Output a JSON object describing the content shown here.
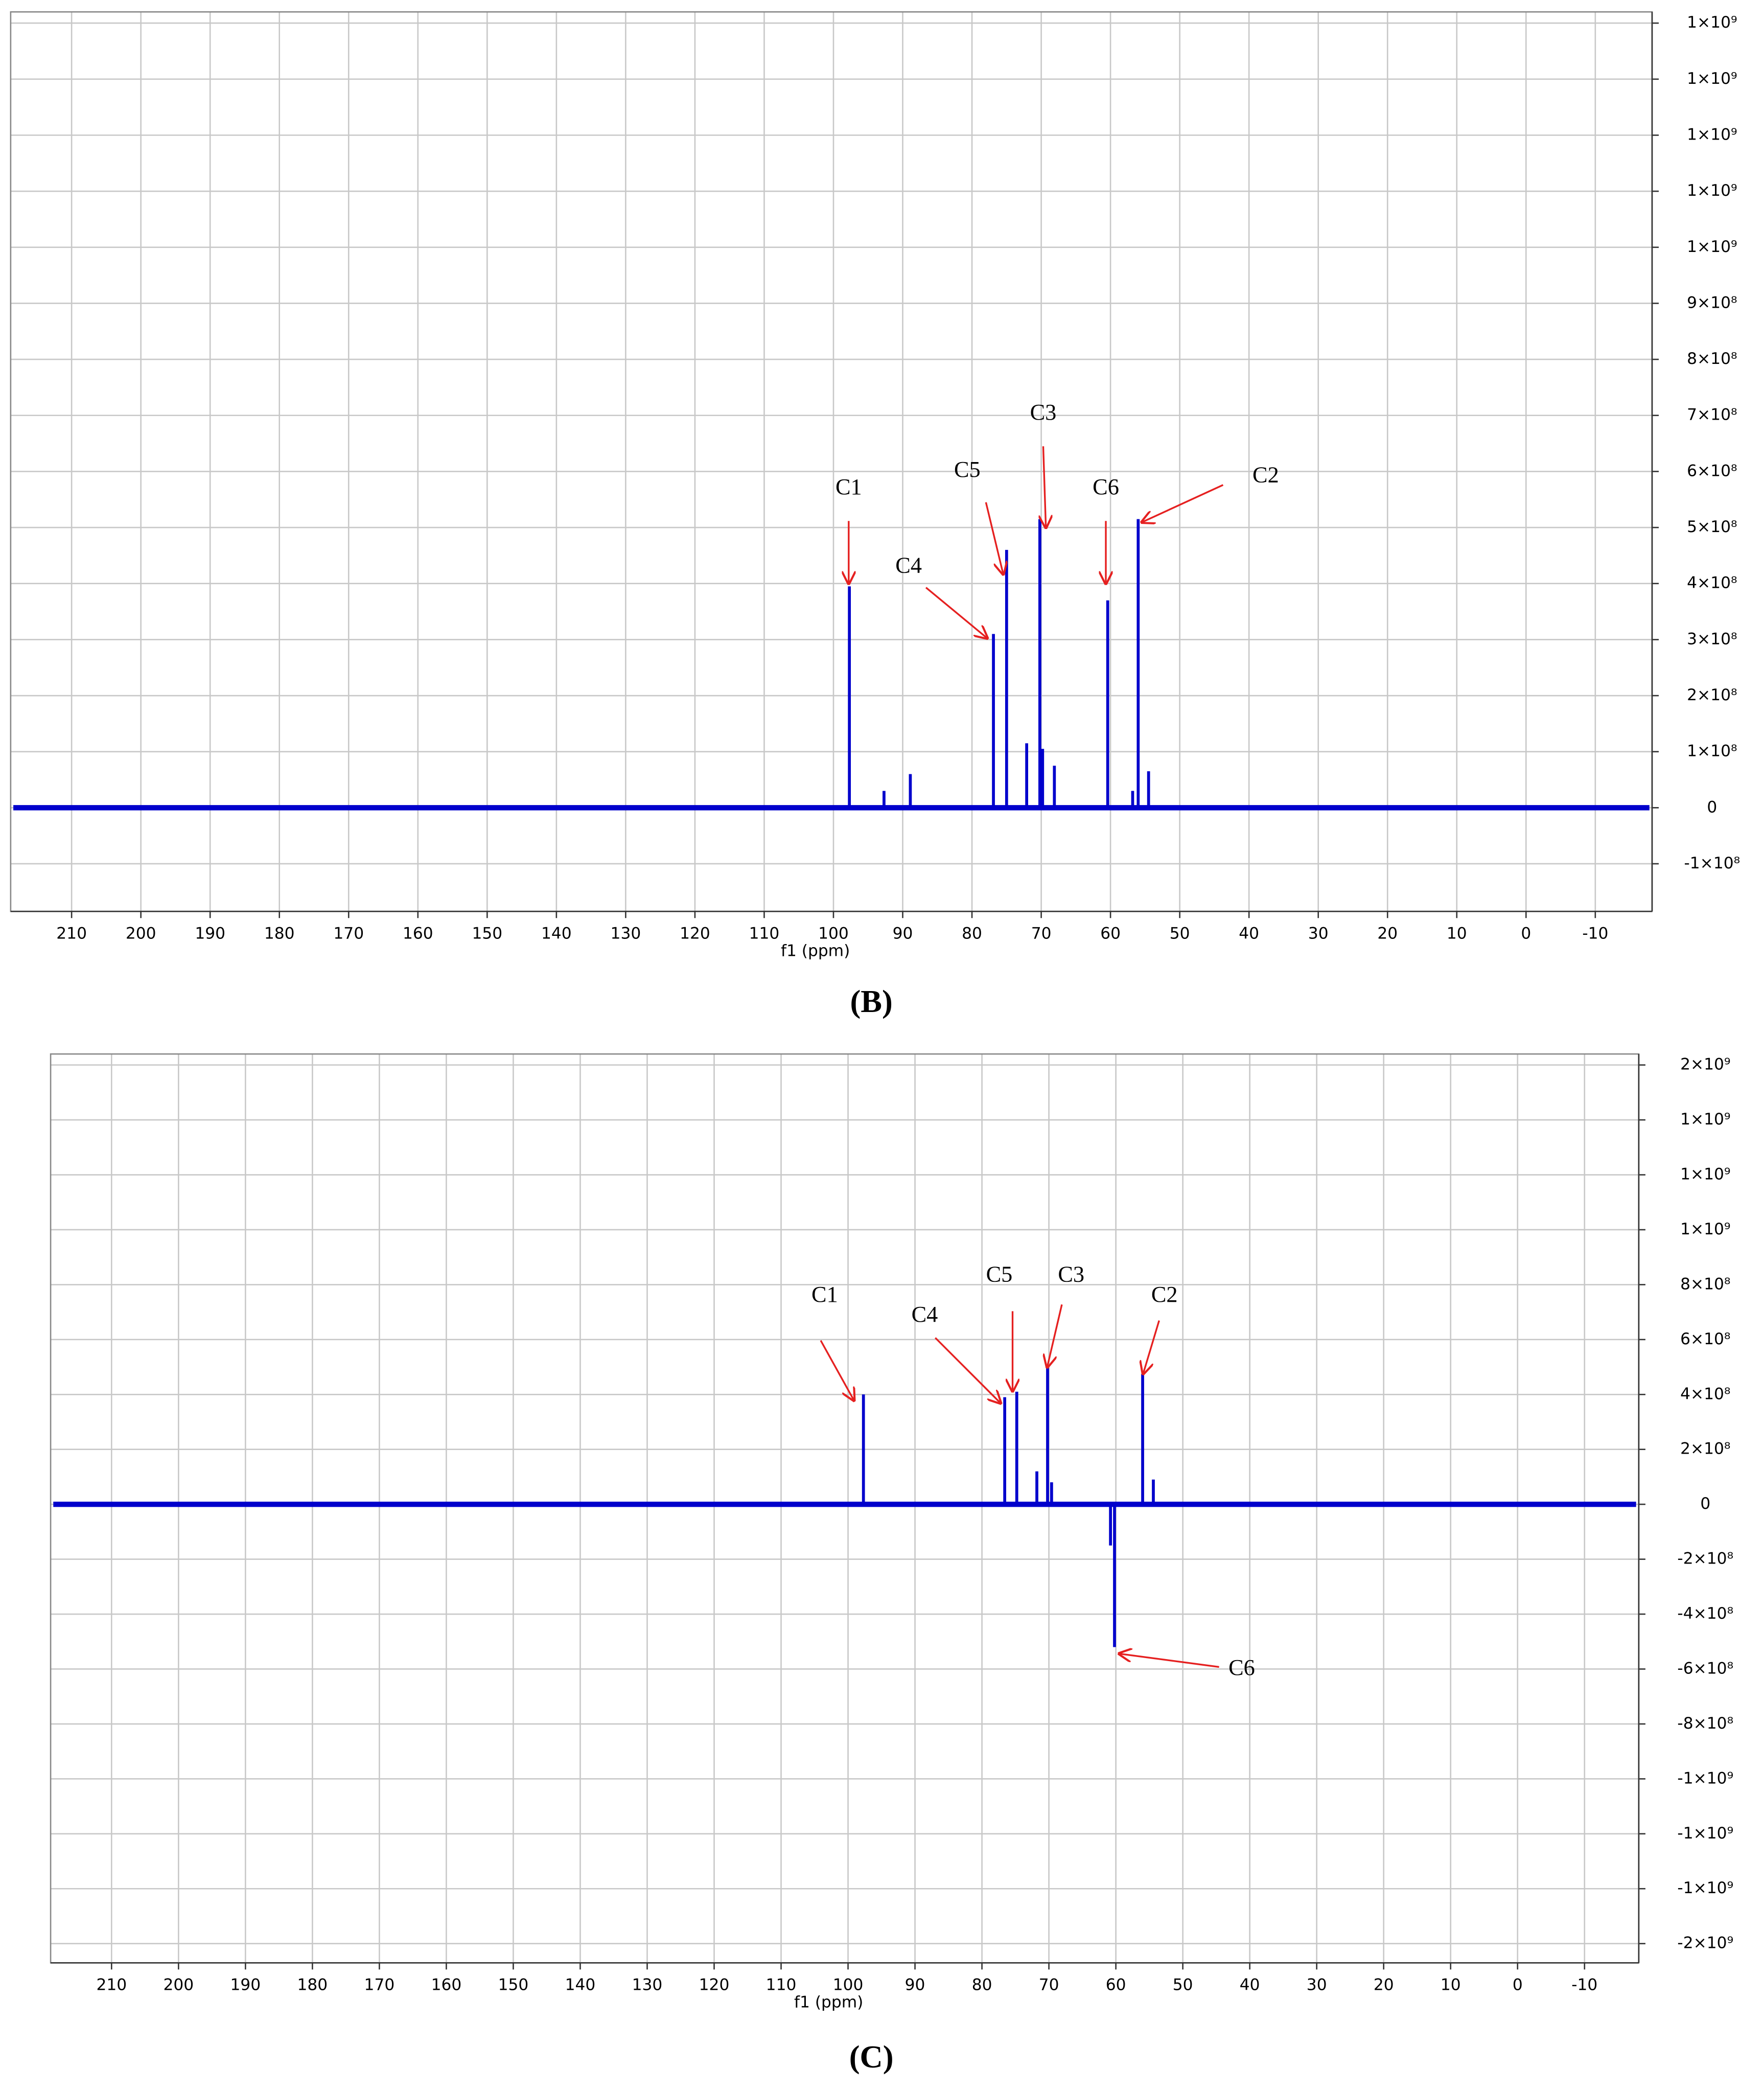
{
  "chart_data": [
    {
      "type": "stem",
      "caption": "(B)",
      "xlabel": "f1 (ppm)",
      "xlim": [
        218.8,
        -18.2
      ],
      "xticks": [
        210,
        200,
        190,
        180,
        170,
        160,
        150,
        140,
        130,
        120,
        110,
        100,
        90,
        80,
        70,
        60,
        50,
        40,
        30,
        20,
        10,
        0,
        -10
      ],
      "ylim": [
        -185000000,
        1420000000
      ],
      "yticks": [
        {
          "value": -100000000,
          "label": "-1×10⁸"
        },
        0,
        {
          "value": 100000000,
          "label": "1×10⁸"
        },
        {
          "value": 200000000,
          "label": "2×10⁸"
        },
        {
          "value": 300000000,
          "label": "3×10⁸"
        },
        {
          "value": 400000000,
          "label": "4×10⁸"
        },
        {
          "value": 500000000,
          "label": "5×10⁸"
        },
        {
          "value": 600000000,
          "label": "6×10⁸"
        },
        {
          "value": 700000000,
          "label": "7×10⁸"
        },
        {
          "value": 800000000,
          "label": "8×10⁸"
        },
        {
          "value": 900000000,
          "label": "9×10⁸"
        },
        {
          "value": 1000000000,
          "label": "1×10⁹"
        },
        {
          "value": 1100000000,
          "label": "1×10⁹"
        },
        {
          "value": 1200000000,
          "label": "1×10⁹"
        },
        {
          "value": 1300000000,
          "label": "1×10⁹"
        },
        {
          "value": 1400000000,
          "label": "1×10⁹"
        }
      ],
      "grid": true,
      "series": [
        {
          "color": "#0000cc",
          "x": [
            97.7,
            92.7,
            88.9,
            76.9,
            75.0,
            72.1,
            70.2,
            69.8,
            68.1,
            60.4,
            56.8,
            56.0,
            54.5
          ],
          "values": [
            395000000,
            30000000,
            60000000,
            310000000,
            460000000,
            115000000,
            515000000,
            105000000,
            75000000,
            370000000,
            30000000,
            515000000,
            65000000
          ],
          "labels": [
            "C1",
            null,
            null,
            "C4",
            "C5",
            null,
            "C3",
            null,
            null,
            "C6",
            null,
            "C2",
            null
          ]
        }
      ]
    },
    {
      "type": "stem",
      "caption": "(C)",
      "xlabel": "f1 (ppm)",
      "xlim": [
        219.1,
        -18.1
      ],
      "xticks": [
        210,
        200,
        190,
        180,
        170,
        160,
        150,
        140,
        130,
        120,
        110,
        100,
        90,
        80,
        70,
        60,
        50,
        40,
        30,
        20,
        10,
        0,
        -10
      ],
      "ylim": [
        -1670000000,
        1640000000
      ],
      "yticks": [
        {
          "value": -1600000000,
          "label": "-2×10⁹"
        },
        {
          "value": -1400000000,
          "label": "-1×10⁹"
        },
        {
          "value": -1200000000,
          "label": "-1×10⁹"
        },
        {
          "value": -1000000000,
          "label": "-1×10⁹"
        },
        {
          "value": -800000000,
          "label": "-8×10⁸"
        },
        {
          "value": -600000000,
          "label": "-6×10⁸"
        },
        {
          "value": -400000000,
          "label": "-4×10⁸"
        },
        {
          "value": -200000000,
          "label": "-2×10⁸"
        },
        0,
        {
          "value": 200000000,
          "label": "2×10⁸"
        },
        {
          "value": 400000000,
          "label": "4×10⁸"
        },
        {
          "value": 600000000,
          "label": "6×10⁸"
        },
        {
          "value": 800000000,
          "label": "8×10⁸"
        },
        {
          "value": 1000000000,
          "label": "1×10⁹"
        },
        {
          "value": 1200000000,
          "label": "1×10⁹"
        },
        {
          "value": 1400000000,
          "label": "1×10⁹"
        },
        {
          "value": 1600000000,
          "label": "2×10⁹"
        }
      ],
      "grid": true,
      "series": [
        {
          "color": "#0000cc",
          "x": [
            97.7,
            76.6,
            74.8,
            71.8,
            70.2,
            69.6,
            60.8,
            60.2,
            56.0,
            54.4
          ],
          "values": [
            400000000,
            390000000,
            410000000,
            120000000,
            500000000,
            80000000,
            -150000000,
            -520000000,
            475000000,
            90000000
          ],
          "labels": [
            "C1",
            "C4",
            "C5",
            null,
            "C3",
            null,
            null,
            "C6",
            "C2",
            null
          ]
        }
      ]
    }
  ]
}
